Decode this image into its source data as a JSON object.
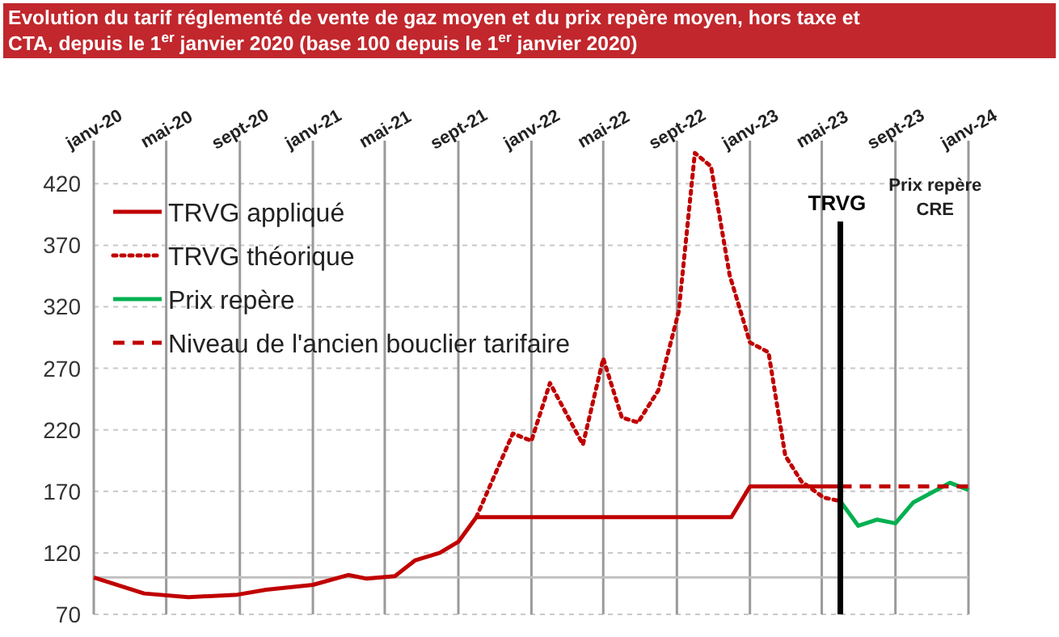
{
  "chart_data": {
    "type": "line",
    "title": "Evolution du tarif réglementé de vente de gaz moyen et du prix repère moyen, hors taxe et CTA, depuis le 1$^{er}$ janvier 2020 (base 100 depuis le 1$^{er}$ janvier 2020)",
    "xlim": [
      "2020-01",
      "2024-01"
    ],
    "xticks": [
      {
        "value": "2020-01",
        "label": "janv-20"
      },
      {
        "value": "2020-05",
        "label": "mai-20"
      },
      {
        "value": "2020-09",
        "label": "sept-20"
      },
      {
        "value": "2021-01",
        "label": "janv-21"
      },
      {
        "value": "2021-05",
        "label": "mai-21"
      },
      {
        "value": "2021-09",
        "label": "sept-21"
      },
      {
        "value": "2022-01",
        "label": "janv-22"
      },
      {
        "value": "2022-05",
        "label": "mai-22"
      },
      {
        "value": "2022-09",
        "label": "sept-22"
      },
      {
        "value": "2023-01",
        "label": "janv-23"
      },
      {
        "value": "2023-05",
        "label": "mai-23"
      },
      {
        "value": "2023-09",
        "label": "sept-23"
      },
      {
        "value": "2024-01",
        "label": "janv-24"
      }
    ],
    "ylim": [
      70,
      455
    ],
    "yticks": [
      70,
      120,
      170,
      220,
      270,
      320,
      370,
      420
    ],
    "grid": true,
    "legend": "top left",
    "series": [
      {
        "name": "TRVG appliqué",
        "color": "#c00000",
        "line_style": "solid",
        "x": [
          "2020-01",
          "2020-03-25",
          "2020-06-07",
          "2020-08-28",
          "2020-10-15",
          "2021-01",
          "2021-03",
          "2021-04",
          "2021-05-18",
          "2021-06-21",
          "2021-08",
          "2021-09",
          "2021-10",
          "2022-12",
          "2023-01",
          "2023-06"
        ],
        "values": [
          100,
          87,
          84,
          86,
          90,
          94,
          102,
          99,
          101,
          114,
          120,
          129,
          149,
          149,
          174,
          174
        ]
      },
      {
        "name": "TRVG théorique",
        "color": "#c00000",
        "line_style": "dotted",
        "x": [
          "2021-10",
          "2021-12",
          "2022-01",
          "2022-02",
          "2022-03-28",
          "2022-05",
          "2022-06",
          "2022-06-28",
          "2022-08",
          "2022-09-04",
          "2022-10",
          "2022-10-28",
          "2022-11-28",
          "2023-01",
          "2023-02",
          "2023-03",
          "2023-03-28",
          "2023-05-04",
          "2023-06"
        ],
        "values": [
          149,
          217,
          211,
          258,
          208,
          278,
          230,
          226,
          252,
          316,
          445,
          434,
          346,
          291,
          283,
          199,
          178,
          165,
          162
        ]
      },
      {
        "name": "Prix repère",
        "color": "#00b050",
        "line_style": "solid",
        "x": [
          "2023-06",
          "2023-07",
          "2023-08",
          "2023-09",
          "2023-10",
          "2023-11",
          "2023-12",
          "2024-01"
        ],
        "values": [
          162,
          142,
          147,
          144,
          161,
          169,
          177,
          171
        ]
      },
      {
        "name": "Niveau de l'ancien bouclier tarifaire",
        "color": "#c00000",
        "line_style": "dashed",
        "x": [
          "2023-06",
          "2024-01"
        ],
        "values": [
          174,
          174
        ]
      }
    ],
    "ref_lines": [
      {
        "axis": "y",
        "value": 100,
        "color": "#bfbfbf"
      },
      {
        "axis": "x",
        "value": "2023-06",
        "label": "TRVG",
        "color": "#000000"
      }
    ],
    "annotations": [
      "Prix repère CRE"
    ]
  }
}
